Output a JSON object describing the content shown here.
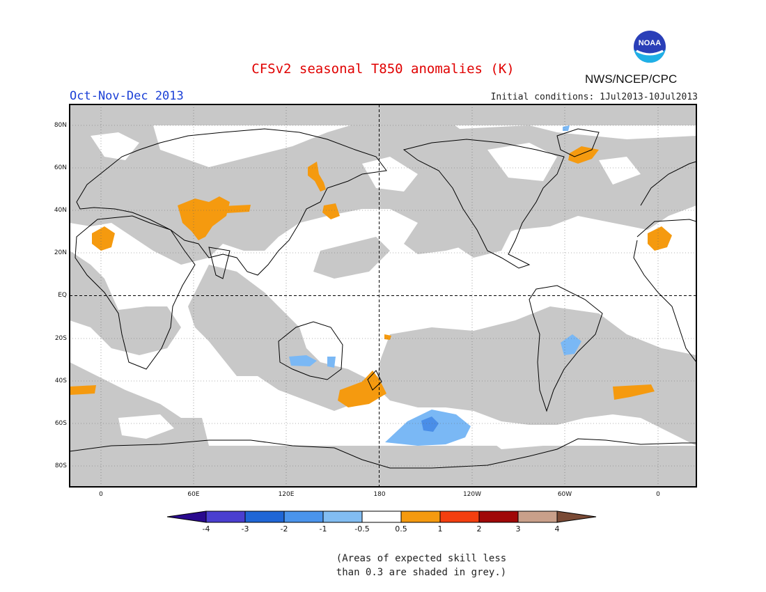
{
  "header": {
    "title": "CFSv2 seasonal T850 anomalies (K)",
    "season": "Oct-Nov-Dec 2013",
    "initial_conditions": "Initial conditions: 1Jul2013-10Jul2013",
    "agency": "NWS/NCEP/CPC",
    "logo_text": "NOAA"
  },
  "map": {
    "lat_labels": [
      "80N",
      "60N",
      "40N",
      "20N",
      "EQ",
      "20S",
      "40S",
      "60S",
      "80S"
    ],
    "lon_labels": [
      "0",
      "60E",
      "120E",
      "180",
      "120W",
      "60W",
      "0"
    ],
    "colors": {
      "skill_grey": "#c8c8c8",
      "warm_0_5_1": "#f59a0f",
      "cool_m1_m0_5": "#7ab8f5",
      "cool_m2_m1": "#4a8ee8"
    }
  },
  "legend": {
    "tick_labels": [
      "-4",
      "-3",
      "-2",
      "-1",
      "-0.5",
      "0.5",
      "1",
      "2",
      "3",
      "4"
    ],
    "colors": [
      "#2a0a8e",
      "#4a3fd0",
      "#1f66d6",
      "#4a94ec",
      "#82bdf2",
      "#ffffff",
      "#f59a0f",
      "#f43f0f",
      "#a00808",
      "#c9a08a",
      "#7a4a35"
    ]
  },
  "note": {
    "line1": "(Areas of expected skill less",
    "line2": "than 0.3 are shaded in grey.)"
  }
}
